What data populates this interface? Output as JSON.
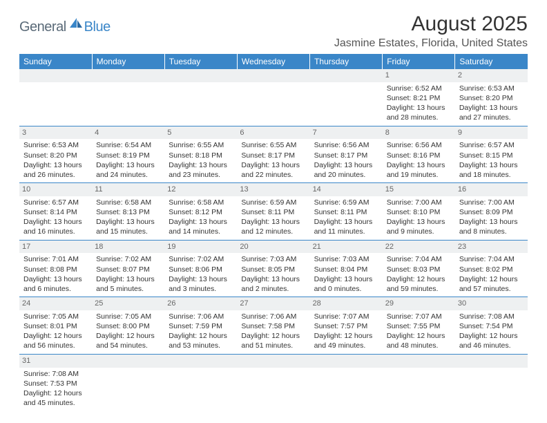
{
  "logo": {
    "part1": "General",
    "part2": "Blue"
  },
  "title": "August 2025",
  "location": "Jasmine Estates, Florida, United States",
  "colors": {
    "header_bg": "#3a86c8",
    "header_text": "#ffffff",
    "daynum_bg": "#eef0f1",
    "daynum_text": "#666666",
    "cell_border": "#3a86c8",
    "logo_gray": "#5a6a78",
    "logo_blue": "#3a86c8"
  },
  "weekdays": [
    "Sunday",
    "Monday",
    "Tuesday",
    "Wednesday",
    "Thursday",
    "Friday",
    "Saturday"
  ],
  "weeks": [
    [
      {
        "empty": true
      },
      {
        "empty": true
      },
      {
        "empty": true
      },
      {
        "empty": true
      },
      {
        "empty": true
      },
      {
        "day": "1",
        "sunrise": "Sunrise: 6:52 AM",
        "sunset": "Sunset: 8:21 PM",
        "daylight": "Daylight: 13 hours and 28 minutes."
      },
      {
        "day": "2",
        "sunrise": "Sunrise: 6:53 AM",
        "sunset": "Sunset: 8:20 PM",
        "daylight": "Daylight: 13 hours and 27 minutes."
      }
    ],
    [
      {
        "day": "3",
        "sunrise": "Sunrise: 6:53 AM",
        "sunset": "Sunset: 8:20 PM",
        "daylight": "Daylight: 13 hours and 26 minutes."
      },
      {
        "day": "4",
        "sunrise": "Sunrise: 6:54 AM",
        "sunset": "Sunset: 8:19 PM",
        "daylight": "Daylight: 13 hours and 24 minutes."
      },
      {
        "day": "5",
        "sunrise": "Sunrise: 6:55 AM",
        "sunset": "Sunset: 8:18 PM",
        "daylight": "Daylight: 13 hours and 23 minutes."
      },
      {
        "day": "6",
        "sunrise": "Sunrise: 6:55 AM",
        "sunset": "Sunset: 8:17 PM",
        "daylight": "Daylight: 13 hours and 22 minutes."
      },
      {
        "day": "7",
        "sunrise": "Sunrise: 6:56 AM",
        "sunset": "Sunset: 8:17 PM",
        "daylight": "Daylight: 13 hours and 20 minutes."
      },
      {
        "day": "8",
        "sunrise": "Sunrise: 6:56 AM",
        "sunset": "Sunset: 8:16 PM",
        "daylight": "Daylight: 13 hours and 19 minutes."
      },
      {
        "day": "9",
        "sunrise": "Sunrise: 6:57 AM",
        "sunset": "Sunset: 8:15 PM",
        "daylight": "Daylight: 13 hours and 18 minutes."
      }
    ],
    [
      {
        "day": "10",
        "sunrise": "Sunrise: 6:57 AM",
        "sunset": "Sunset: 8:14 PM",
        "daylight": "Daylight: 13 hours and 16 minutes."
      },
      {
        "day": "11",
        "sunrise": "Sunrise: 6:58 AM",
        "sunset": "Sunset: 8:13 PM",
        "daylight": "Daylight: 13 hours and 15 minutes."
      },
      {
        "day": "12",
        "sunrise": "Sunrise: 6:58 AM",
        "sunset": "Sunset: 8:12 PM",
        "daylight": "Daylight: 13 hours and 14 minutes."
      },
      {
        "day": "13",
        "sunrise": "Sunrise: 6:59 AM",
        "sunset": "Sunset: 8:11 PM",
        "daylight": "Daylight: 13 hours and 12 minutes."
      },
      {
        "day": "14",
        "sunrise": "Sunrise: 6:59 AM",
        "sunset": "Sunset: 8:11 PM",
        "daylight": "Daylight: 13 hours and 11 minutes."
      },
      {
        "day": "15",
        "sunrise": "Sunrise: 7:00 AM",
        "sunset": "Sunset: 8:10 PM",
        "daylight": "Daylight: 13 hours and 9 minutes."
      },
      {
        "day": "16",
        "sunrise": "Sunrise: 7:00 AM",
        "sunset": "Sunset: 8:09 PM",
        "daylight": "Daylight: 13 hours and 8 minutes."
      }
    ],
    [
      {
        "day": "17",
        "sunrise": "Sunrise: 7:01 AM",
        "sunset": "Sunset: 8:08 PM",
        "daylight": "Daylight: 13 hours and 6 minutes."
      },
      {
        "day": "18",
        "sunrise": "Sunrise: 7:02 AM",
        "sunset": "Sunset: 8:07 PM",
        "daylight": "Daylight: 13 hours and 5 minutes."
      },
      {
        "day": "19",
        "sunrise": "Sunrise: 7:02 AM",
        "sunset": "Sunset: 8:06 PM",
        "daylight": "Daylight: 13 hours and 3 minutes."
      },
      {
        "day": "20",
        "sunrise": "Sunrise: 7:03 AM",
        "sunset": "Sunset: 8:05 PM",
        "daylight": "Daylight: 13 hours and 2 minutes."
      },
      {
        "day": "21",
        "sunrise": "Sunrise: 7:03 AM",
        "sunset": "Sunset: 8:04 PM",
        "daylight": "Daylight: 13 hours and 0 minutes."
      },
      {
        "day": "22",
        "sunrise": "Sunrise: 7:04 AM",
        "sunset": "Sunset: 8:03 PM",
        "daylight": "Daylight: 12 hours and 59 minutes."
      },
      {
        "day": "23",
        "sunrise": "Sunrise: 7:04 AM",
        "sunset": "Sunset: 8:02 PM",
        "daylight": "Daylight: 12 hours and 57 minutes."
      }
    ],
    [
      {
        "day": "24",
        "sunrise": "Sunrise: 7:05 AM",
        "sunset": "Sunset: 8:01 PM",
        "daylight": "Daylight: 12 hours and 56 minutes."
      },
      {
        "day": "25",
        "sunrise": "Sunrise: 7:05 AM",
        "sunset": "Sunset: 8:00 PM",
        "daylight": "Daylight: 12 hours and 54 minutes."
      },
      {
        "day": "26",
        "sunrise": "Sunrise: 7:06 AM",
        "sunset": "Sunset: 7:59 PM",
        "daylight": "Daylight: 12 hours and 53 minutes."
      },
      {
        "day": "27",
        "sunrise": "Sunrise: 7:06 AM",
        "sunset": "Sunset: 7:58 PM",
        "daylight": "Daylight: 12 hours and 51 minutes."
      },
      {
        "day": "28",
        "sunrise": "Sunrise: 7:07 AM",
        "sunset": "Sunset: 7:57 PM",
        "daylight": "Daylight: 12 hours and 49 minutes."
      },
      {
        "day": "29",
        "sunrise": "Sunrise: 7:07 AM",
        "sunset": "Sunset: 7:55 PM",
        "daylight": "Daylight: 12 hours and 48 minutes."
      },
      {
        "day": "30",
        "sunrise": "Sunrise: 7:08 AM",
        "sunset": "Sunset: 7:54 PM",
        "daylight": "Daylight: 12 hours and 46 minutes."
      }
    ],
    [
      {
        "day": "31",
        "sunrise": "Sunrise: 7:08 AM",
        "sunset": "Sunset: 7:53 PM",
        "daylight": "Daylight: 12 hours and 45 minutes."
      },
      {
        "empty": true
      },
      {
        "empty": true
      },
      {
        "empty": true
      },
      {
        "empty": true
      },
      {
        "empty": true
      },
      {
        "empty": true
      }
    ]
  ]
}
